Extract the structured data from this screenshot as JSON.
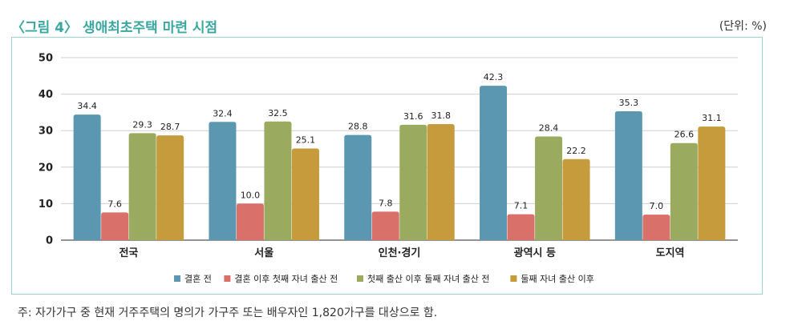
{
  "title": "〈그림 4〉 생애최초주택 마련 시점",
  "unit": "(단위: %)",
  "note": "주: 자가가구 중 현재 거주주택의 명의가 가구주 또는 배우자인 1,820가구를 대상으로 함.",
  "chart_data": {
    "type": "bar",
    "categories": [
      "전국",
      "서울",
      "인천·경기",
      "광역시 등",
      "도지역"
    ],
    "series": [
      {
        "name": "결혼 전",
        "values": [
          34.4,
          32.4,
          28.8,
          42.3,
          35.3
        ],
        "color": "#5b97b1"
      },
      {
        "name": "결혼 이후 첫째 자녀 출산 전",
        "values": [
          7.6,
          10.0,
          7.8,
          7.1,
          7.0
        ],
        "color": "#d9706a"
      },
      {
        "name": "첫째 출산 이후 둘째 자녀 출산 전",
        "values": [
          29.3,
          32.5,
          31.6,
          28.4,
          26.6
        ],
        "color": "#9aab5f"
      },
      {
        "name": "둘째 자녀 출산 이후",
        "values": [
          28.7,
          25.1,
          31.8,
          22.2,
          31.1
        ],
        "color": "#c59b3b"
      }
    ],
    "ylim": [
      0,
      50
    ],
    "yticks": [
      0,
      10,
      20,
      30,
      40,
      50
    ],
    "grid": true,
    "legend": "bottom"
  }
}
